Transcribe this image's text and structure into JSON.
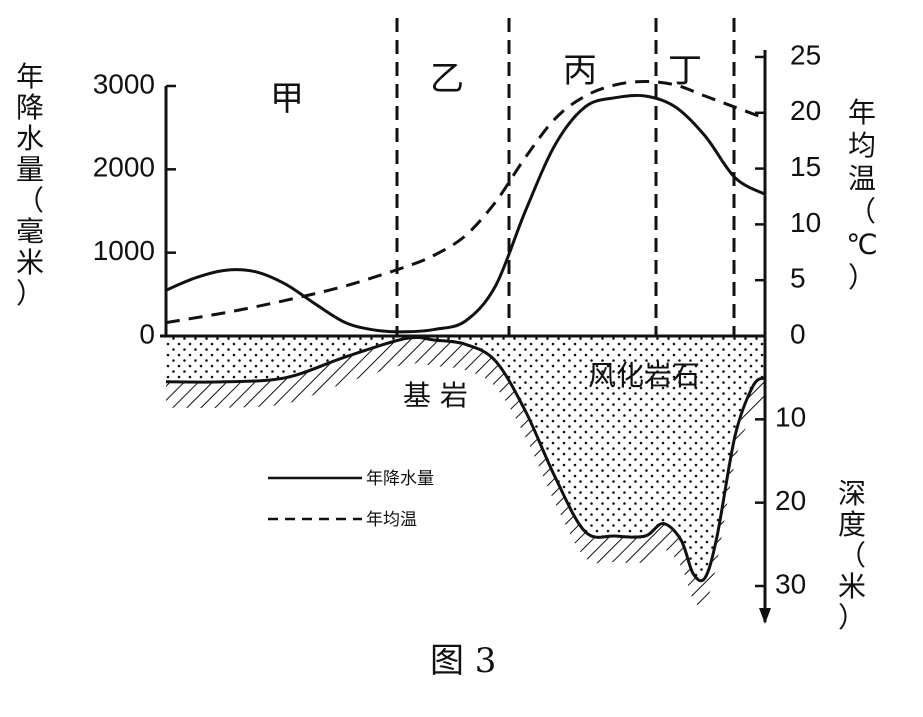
{
  "chart_data": {
    "type": "line",
    "caption": "图 3",
    "left_axis": {
      "label_chars": [
        "年",
        "降",
        "水",
        "量",
        "（",
        "毫",
        "米",
        "）"
      ],
      "ticks": [
        0,
        1000,
        2000,
        3000
      ],
      "range": [
        0,
        3000
      ]
    },
    "right_axis_temp": {
      "label_chars": [
        "年",
        "均",
        "温",
        "（",
        "℃",
        "）"
      ],
      "ticks": [
        0,
        5,
        10,
        15,
        20,
        25
      ],
      "range": [
        0,
        25
      ]
    },
    "right_axis_depth": {
      "label_chars": [
        "深",
        "度",
        "（",
        "米",
        "）"
      ],
      "ticks": [
        10,
        20,
        30
      ],
      "range": [
        0,
        33
      ]
    },
    "zones": [
      "甲",
      "乙",
      "丙",
      "丁"
    ],
    "annotations": {
      "bedrock": "基 岩",
      "weathered_rock": "风化岩石"
    },
    "legend": [
      {
        "label": "年降水量",
        "style": "solid"
      },
      {
        "label": "年均温",
        "style": "dashed"
      }
    ],
    "series": [
      {
        "name": "年降水量",
        "axis": "left",
        "x": [
          0,
          0.05,
          0.1,
          0.15,
          0.2,
          0.25,
          0.3,
          0.35,
          0.4,
          0.45,
          0.5,
          0.55,
          0.6,
          0.65,
          0.7,
          0.75,
          0.8,
          0.85,
          0.9,
          0.95,
          1.0
        ],
        "values": [
          550,
          700,
          790,
          770,
          620,
          380,
          160,
          70,
          50,
          80,
          180,
          600,
          1500,
          2300,
          2750,
          2860,
          2880,
          2750,
          2400,
          1900,
          1700
        ]
      },
      {
        "name": "年均温",
        "axis": "right",
        "x": [
          0,
          0.1,
          0.2,
          0.3,
          0.4,
          0.45,
          0.5,
          0.55,
          0.6,
          0.65,
          0.7,
          0.75,
          0.8,
          0.85,
          0.9,
          0.95,
          1.0
        ],
        "values": [
          1.2,
          2.1,
          3.2,
          4.5,
          6.2,
          7.3,
          9.0,
          12.0,
          16.0,
          19.5,
          21.5,
          22.5,
          22.8,
          22.5,
          21.5,
          20.5,
          19.5
        ]
      },
      {
        "name": "风化层深度",
        "axis": "depth",
        "x": [
          0,
          0.1,
          0.2,
          0.3,
          0.4,
          0.45,
          0.5,
          0.55,
          0.6,
          0.65,
          0.7,
          0.75,
          0.8,
          0.83,
          0.86,
          0.88,
          0.9,
          0.92,
          0.95,
          0.98,
          1.0
        ],
        "values": [
          5.5,
          5.5,
          5.0,
          2.5,
          0.3,
          0.5,
          1.0,
          3.0,
          9.0,
          17.0,
          23.5,
          24.0,
          24.0,
          22.5,
          24.5,
          28.5,
          29.0,
          24.0,
          12.0,
          6.0,
          5.0
        ]
      }
    ]
  }
}
